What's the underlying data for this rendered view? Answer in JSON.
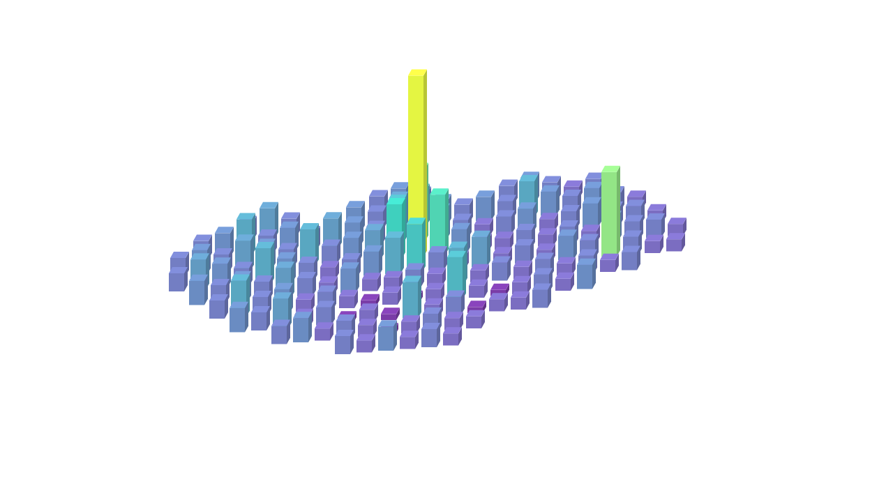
{
  "chart_data": {
    "type": "3d_column_map",
    "tick_labels": false,
    "zlim": [
      0,
      30
    ],
    "values": [
      [
        null,
        null,
        null,
        null,
        null,
        null,
        null,
        null,
        null,
        3,
        4,
        3,
        null,
        null,
        null,
        3,
        4,
        3,
        2,
        3,
        null,
        null,
        null,
        null
      ],
      [
        null,
        null,
        null,
        3,
        5,
        3,
        null,
        null,
        4,
        3,
        5,
        6,
        4,
        3,
        4,
        3,
        6,
        4,
        3,
        4,
        3,
        2,
        null,
        null
      ],
      [
        null,
        3,
        4,
        6,
        3,
        4,
        3,
        5,
        4,
        3,
        7,
        12,
        5,
        3,
        2,
        3,
        4,
        2,
        3,
        4,
        3,
        3,
        2,
        null
      ],
      [
        3,
        4,
        3,
        5,
        4,
        3,
        6,
        3,
        4,
        5,
        9,
        30,
        10,
        4,
        2,
        2,
        3,
        2,
        3,
        2,
        4,
        3,
        3,
        2
      ],
      [
        3,
        5,
        4,
        3,
        6,
        4,
        3,
        2,
        3,
        4,
        6,
        8,
        3,
        2,
        5,
        2,
        3,
        2,
        4,
        3,
        14,
        3,
        2,
        2
      ],
      [
        null,
        4,
        3,
        4,
        3,
        5,
        3,
        2,
        4,
        2,
        2,
        3,
        2,
        6,
        2,
        3,
        2,
        3,
        2,
        3,
        2,
        3,
        null,
        null
      ],
      [
        null,
        null,
        3,
        6,
        3,
        4,
        2,
        3,
        2,
        1,
        2,
        1,
        2,
        7,
        2,
        1,
        2,
        3,
        2,
        4,
        null,
        null,
        null,
        null
      ],
      [
        null,
        null,
        null,
        4,
        3,
        5,
        2,
        3,
        1,
        2,
        1,
        6,
        2,
        3,
        1,
        2,
        2,
        3,
        null,
        null,
        null,
        null,
        null,
        null
      ],
      [
        null,
        null,
        null,
        null,
        null,
        3,
        4,
        2,
        3,
        2,
        1,
        2,
        3,
        2,
        2,
        null,
        null,
        null,
        null,
        null,
        null,
        null,
        null,
        null
      ],
      [
        null,
        null,
        null,
        null,
        null,
        null,
        null,
        null,
        3,
        2,
        4,
        2,
        3,
        2,
        null,
        null,
        null,
        null,
        null,
        null,
        null,
        null,
        null,
        null
      ]
    ]
  }
}
